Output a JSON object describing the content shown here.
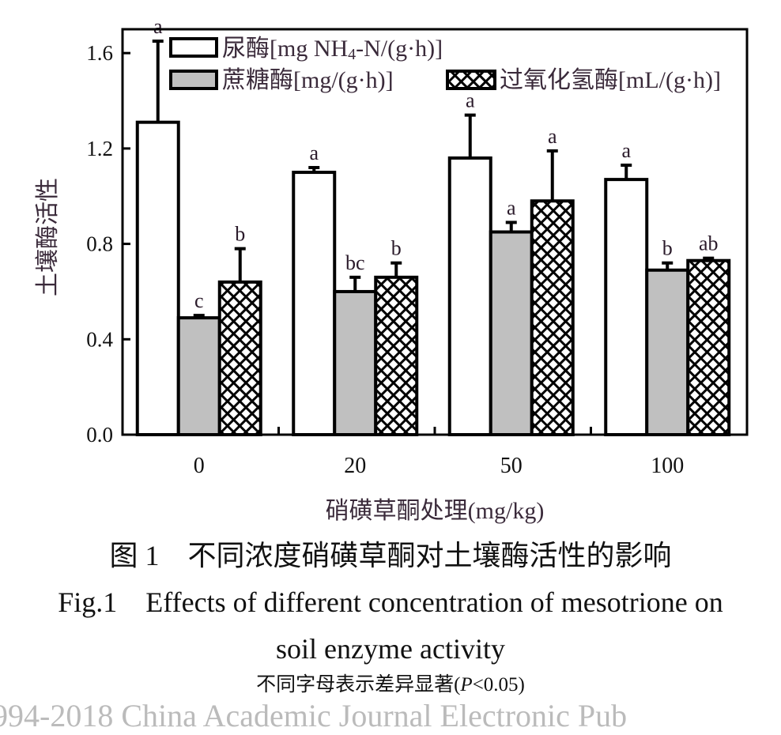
{
  "chart_data": {
    "type": "bar",
    "categories": [
      "0",
      "20",
      "50",
      "100"
    ],
    "xlabel": "硝磺草酮处理(mg/kg)",
    "ylabel": "土壤酶活性",
    "ylim": [
      0,
      1.7
    ],
    "yticks": [
      "0.0",
      "0.4",
      "0.8",
      "1.2",
      "1.6"
    ],
    "ytick_values": [
      0,
      0.4,
      0.8,
      1.2,
      1.6
    ],
    "grid": false,
    "legend_placement": "top",
    "series": [
      {
        "name": "尿酶[mg NH4-N/(g·h)]",
        "fill": "white",
        "values": [
          1.31,
          1.1,
          1.16,
          1.07
        ],
        "error": [
          0.34,
          0.02,
          0.18,
          0.06
        ],
        "letters": [
          "a",
          "a",
          "a",
          "a"
        ]
      },
      {
        "name": "蔗糖酶[mg/(g·h)]",
        "fill": "gray",
        "values": [
          0.49,
          0.6,
          0.85,
          0.69
        ],
        "error": [
          0.01,
          0.06,
          0.04,
          0.03
        ],
        "letters": [
          "c",
          "bc",
          "a",
          "b"
        ]
      },
      {
        "name": "过氧化氢酶[mL/(g·h)]",
        "fill": "crosshatch",
        "values": [
          0.64,
          0.66,
          0.98,
          0.73
        ],
        "error": [
          0.14,
          0.06,
          0.21,
          0.01
        ],
        "letters": [
          "b",
          "b",
          "a",
          "ab"
        ]
      }
    ],
    "colors": {
      "gray": "#c0c0c0",
      "axis": "#000000",
      "label": "#3a2a3a"
    }
  },
  "legend": {
    "urease": {
      "main": "尿酶[mg NH",
      "sub": "4",
      "rest": "-N/(g·h)]"
    },
    "sucrase": "蔗糖酶[mg/(g·h)]",
    "catalase": "过氧化氢酶[mL/(g·h)]"
  },
  "caption": {
    "cn": "图 1　不同浓度硝磺草酮对土壤酶活性的影响",
    "en_line1": "Fig.1　Effects of different concentration of mesotrione on",
    "en_line2": "soil enzyme activity",
    "note_prefix": "不同字母表示差异显著(",
    "note_p": "P",
    "note_suffix": "<0.05)"
  },
  "watermark": "994-2018 China Academic Journal Electronic Pub"
}
